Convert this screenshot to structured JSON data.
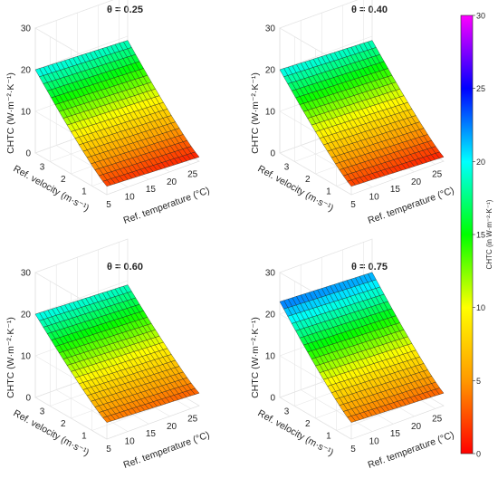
{
  "chart_data": {
    "type": "surface",
    "panels": [
      {
        "title": "θ = 0.25",
        "theta": 0.25,
        "chtc_range": [
          2,
          20
        ]
      },
      {
        "title": "θ = 0.40",
        "theta": 0.4,
        "chtc_range": [
          2,
          20
        ]
      },
      {
        "title": "θ = 0.60",
        "theta": 0.6,
        "chtc_range": [
          4,
          20
        ]
      },
      {
        "title": "θ = 0.75",
        "theta": 0.75,
        "chtc_range": [
          4,
          23
        ]
      }
    ],
    "xlabel": "Ref. temperature (°C)",
    "xticks": [
      5,
      10,
      15,
      20,
      25
    ],
    "xlim": [
      5,
      27
    ],
    "ylabel": "Ref. velocity (m·s⁻¹)",
    "yticks": [
      1,
      2,
      3
    ],
    "ylim": [
      0.3,
      3.7
    ],
    "zlabel": "CHTC (W·m⁻²·K⁻¹)",
    "zticks": [
      0,
      10,
      20,
      30
    ],
    "zlim": [
      0,
      30
    ],
    "colorbar": {
      "label": "CHTC (in W·m⁻²·K⁻¹)",
      "ticks": [
        0,
        5,
        10,
        15,
        20,
        25,
        30
      ],
      "range": [
        0,
        30
      ],
      "colormap": [
        "#ff0000",
        "#ff9900",
        "#ffff00",
        "#00ff00",
        "#00ffff",
        "#0000ff",
        "#ff00ff"
      ]
    },
    "grid": true
  }
}
